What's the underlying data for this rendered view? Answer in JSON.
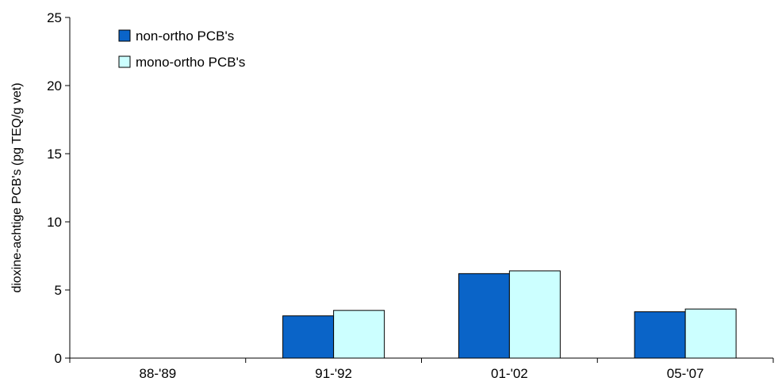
{
  "chart_data": {
    "type": "bar",
    "title": "",
    "xlabel": "",
    "ylabel": "dioxine-achtige PCB's (pg TEQ/g vet)",
    "categories": [
      "88-'89",
      "91-'92",
      "01-'02",
      "05-'07"
    ],
    "series": [
      {
        "name": "non-ortho PCB's",
        "values": [
          0,
          3.1,
          6.2,
          3.4
        ],
        "color": "#0a64c8"
      },
      {
        "name": "mono-ortho PCB's",
        "values": [
          0,
          3.5,
          6.4,
          3.6
        ],
        "color": "#ccffff"
      }
    ],
    "ylim": [
      0,
      25
    ],
    "yticks": [
      0,
      5,
      10,
      15,
      20,
      25
    ],
    "grid": false,
    "legend_position": "top-left"
  }
}
